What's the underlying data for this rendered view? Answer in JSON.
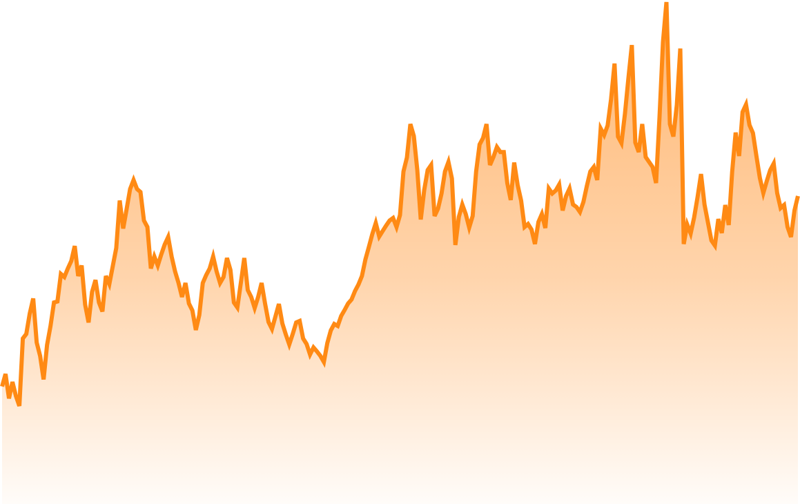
{
  "chart_data": {
    "type": "area",
    "title": "",
    "xlabel": "",
    "ylabel": "",
    "ylim": [
      0,
      100
    ],
    "grid": false,
    "legend": "none",
    "line_color": "#ff8a14",
    "fill_color_top": "#ff9a3a",
    "fill_color_bottom": "#ffffff",
    "series": [
      {
        "values": [
          23.1,
          25.6,
          20.7,
          24.0,
          21.2,
          19.2,
          32.7,
          33.6,
          37.7,
          40.7,
          31.9,
          29.2,
          24.5,
          31.4,
          35.2,
          39.9,
          40.1,
          45.6,
          45.0,
          46.7,
          48.2,
          51.2,
          45.2,
          47.3,
          39.5,
          35.9,
          42.0,
          44.4,
          39.9,
          38.1,
          45.2,
          43.6,
          47.2,
          50.8,
          60.3,
          54.7,
          58.6,
          62.6,
          64.4,
          62.6,
          62.0,
          56.3,
          55.0,
          46.7,
          49.1,
          47.3,
          49.5,
          51.5,
          53.0,
          49.1,
          46.1,
          43.8,
          41.0,
          43.8,
          39.7,
          38.3,
          34.4,
          37.4,
          43.8,
          45.4,
          46.7,
          49.1,
          46.1,
          43.8,
          45.0,
          48.8,
          46.4,
          39.9,
          38.9,
          43.8,
          48.8,
          42.4,
          41.0,
          38.8,
          41.0,
          43.8,
          39.7,
          36.0,
          34.6,
          37.1,
          39.6,
          35.7,
          33.5,
          31.5,
          33.6,
          35.9,
          36.2,
          32.7,
          31.6,
          29.5,
          30.9,
          30.1,
          29.2,
          28.0,
          31.8,
          34.3,
          35.6,
          35.2,
          37.2,
          38.4,
          39.7,
          40.5,
          42.2,
          43.5,
          45.2,
          48.5,
          51.0,
          53.6,
          55.8,
          53.1,
          54.2,
          55.3,
          56.3,
          56.8,
          55.0,
          57.4,
          66.1,
          68.9,
          75.6,
          73.2,
          66.4,
          56.5,
          62.4,
          66.4,
          67.4,
          57.2,
          58.7,
          61.7,
          66.1,
          68.0,
          64.7,
          51.4,
          57.0,
          59.5,
          57.6,
          54.9,
          57.2,
          66.1,
          71.5,
          72.8,
          75.6,
          67.4,
          69.0,
          71.0,
          70.0,
          70.0,
          63.8,
          60.4,
          67.9,
          63.4,
          60.3,
          55.0,
          55.6,
          54.5,
          51.6,
          56.0,
          57.6,
          54.8,
          62.7,
          61.7,
          62.3,
          63.5,
          58.3,
          61.2,
          62.7,
          59.5,
          59.0,
          58.0,
          60.0,
          63.2,
          66.1,
          67.0,
          64.4,
          74.7,
          73.4,
          75.3,
          80.6,
          87.7,
          73.1,
          71.8,
          77.6,
          84.7,
          91.4,
          71.9,
          70.0,
          75.6,
          69.0,
          68.0,
          67.0,
          63.8,
          77.0,
          92.0,
          100.0,
          75.6,
          73.1,
          79.4,
          90.7,
          51.6,
          55.5,
          53.7,
          56.9,
          61.0,
          65.6,
          59.5,
          55.9,
          52.3,
          51.3,
          56.6,
          53.8,
          59.4,
          55.4,
          66.1,
          73.9,
          69.2,
          78.0,
          79.5,
          75.4,
          73.8,
          69.2,
          64.8,
          61.8,
          64.2,
          66.4,
          67.7,
          61.8,
          58.8,
          59.4,
          55.0,
          53.0,
          58.3,
          61.2
        ]
      }
    ]
  }
}
